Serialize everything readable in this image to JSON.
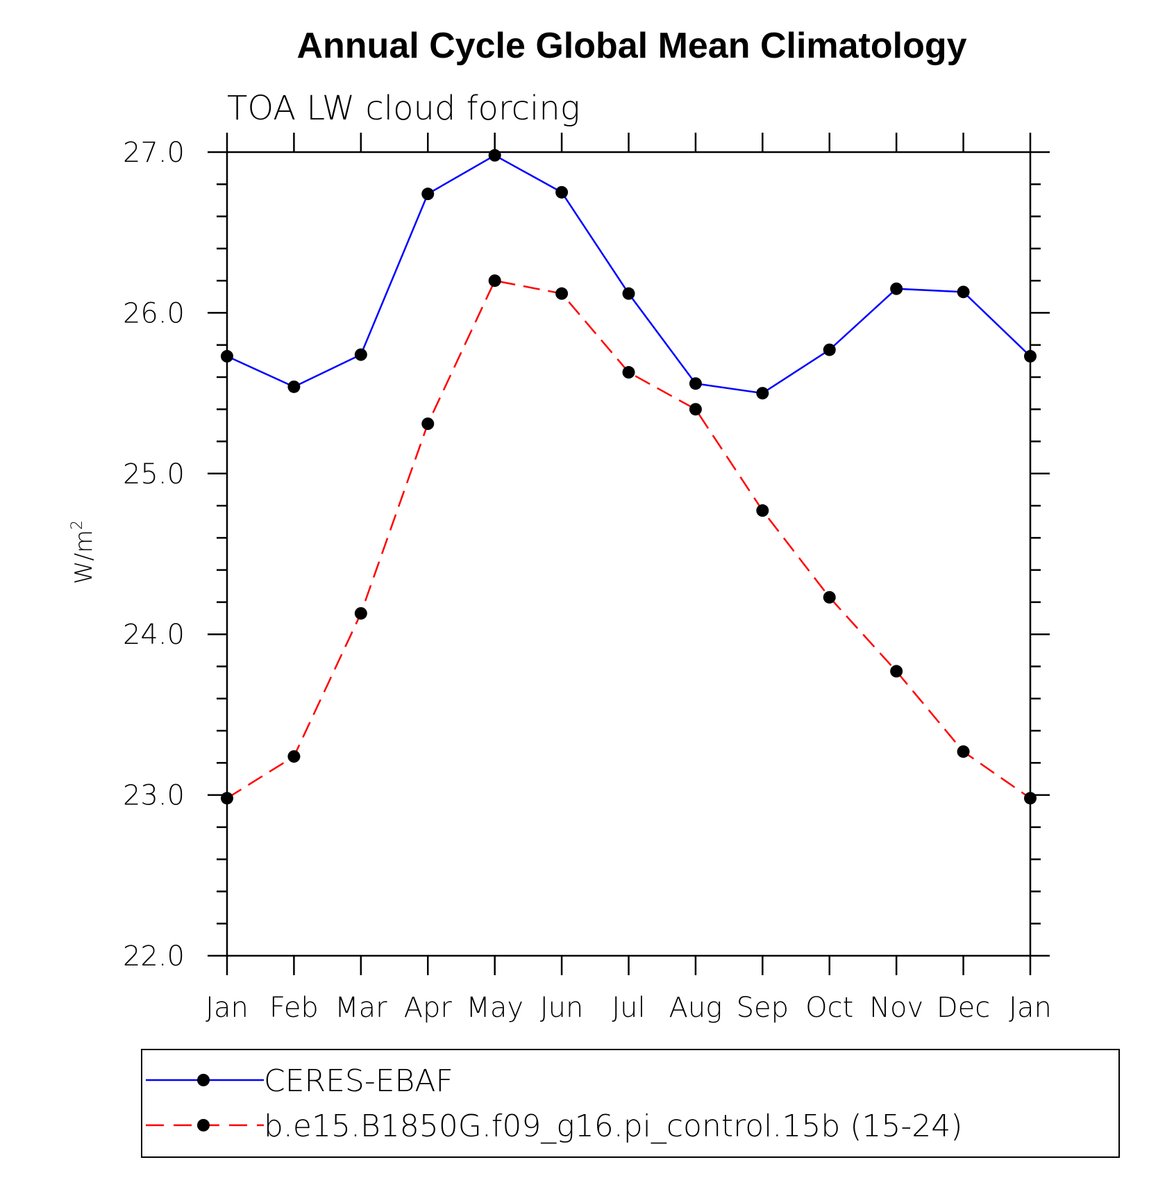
{
  "chart_data": {
    "type": "line",
    "title": "Annual Cycle Global Mean Climatology",
    "subtitle": "TOA LW cloud forcing",
    "ylabel": "W/m",
    "ylabel_superscript": "2",
    "xlabel": "",
    "categories": [
      "Jan",
      "Feb",
      "Mar",
      "Apr",
      "May",
      "Jun",
      "Jul",
      "Aug",
      "Sep",
      "Oct",
      "Nov",
      "Dec",
      "Jan"
    ],
    "ylim": [
      22.0,
      27.0
    ],
    "yticks": [
      "22.0",
      "23.0",
      "24.0",
      "25.0",
      "26.0",
      "27.0"
    ],
    "grid": false,
    "legend_position": "bottom",
    "series": [
      {
        "name": "CERES-EBAF",
        "color": "#0000ff",
        "dash": "solid",
        "values": [
          25.73,
          25.54,
          25.74,
          26.74,
          26.98,
          26.75,
          26.12,
          25.56,
          25.5,
          25.77,
          26.15,
          26.13,
          25.73
        ]
      },
      {
        "name": "b.e15.B1850G.f09_g16.pi_control.15b (15-24)",
        "color": "#ff0000",
        "dash": "dashed",
        "values": [
          22.98,
          23.24,
          24.13,
          25.31,
          26.2,
          26.12,
          25.63,
          25.4,
          24.77,
          24.23,
          23.77,
          23.27,
          22.98
        ]
      }
    ]
  }
}
